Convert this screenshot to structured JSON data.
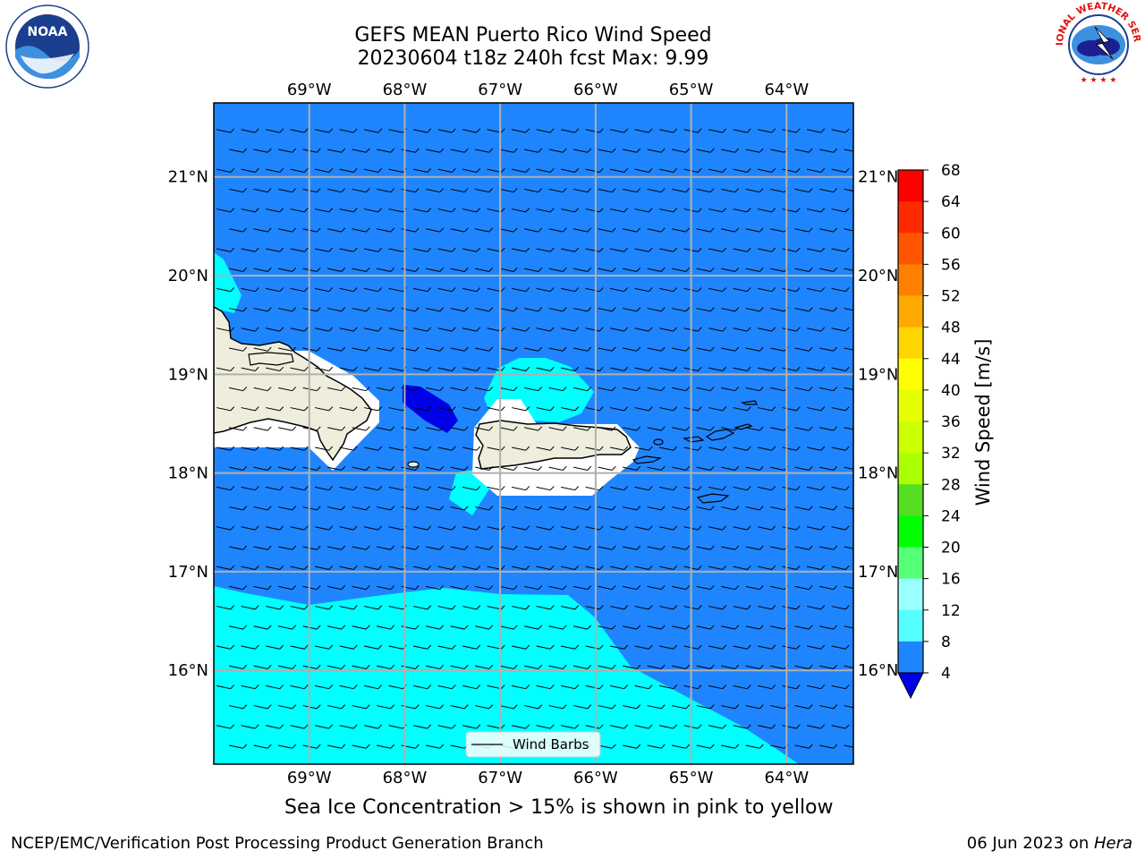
{
  "title": {
    "line1": "GEFS MEAN Puerto Rico Wind Speed",
    "line2": "20230604 t18z 240h fcst   Max: 9.99"
  },
  "map": {
    "lon_labels": [
      "69°W",
      "68°W",
      "67°W",
      "66°W",
      "65°W",
      "64°W"
    ],
    "lat_labels_left": [
      "21°N",
      "20°N",
      "19°N",
      "18°N",
      "17°N",
      "16°N"
    ],
    "lat_labels_right": [
      "21°N",
      "20°N",
      "19°N",
      "18°N",
      "17°N",
      "16°N"
    ],
    "lon_range": [
      -70.0,
      -63.3
    ],
    "lat_range": [
      15.05,
      21.75
    ],
    "legend_label": "Wind Barbs",
    "colors": {
      "ocean_base": "#1f85ff",
      "cyan_band": "#00ffff",
      "light_cyan": "#44ffff",
      "dark_blue": "#0000e6",
      "land": "#efeedd"
    }
  },
  "colorbar": {
    "label": "Wind Speed [m/s]",
    "ticks": [
      "68",
      "64",
      "60",
      "56",
      "52",
      "48",
      "44",
      "40",
      "36",
      "32",
      "28",
      "24",
      "20",
      "16",
      "12",
      "8",
      "4"
    ],
    "colors": [
      "#ff0000",
      "#ff2a00",
      "#ff5500",
      "#ff8000",
      "#ffaa00",
      "#ffd500",
      "#ffff00",
      "#e6ff00",
      "#ccff00",
      "#aaff00",
      "#55dd22",
      "#00ff00",
      "#55ff77",
      "#99ffff",
      "#55ffff",
      "#00ffff",
      "#1f85ff"
    ],
    "extend_color": "#0000e6"
  },
  "note": "Sea Ice Concentration > 15% is shown in pink to yellow",
  "footer": {
    "left": "NCEP/EMC/Verification Post Processing Product Generation Branch",
    "right_date": "06 Jun 2023 on ",
    "right_host": "Hera"
  },
  "logos": {
    "noaa_text": "NOAA",
    "nws_text": "NATIONAL WEATHER SERVICE"
  }
}
